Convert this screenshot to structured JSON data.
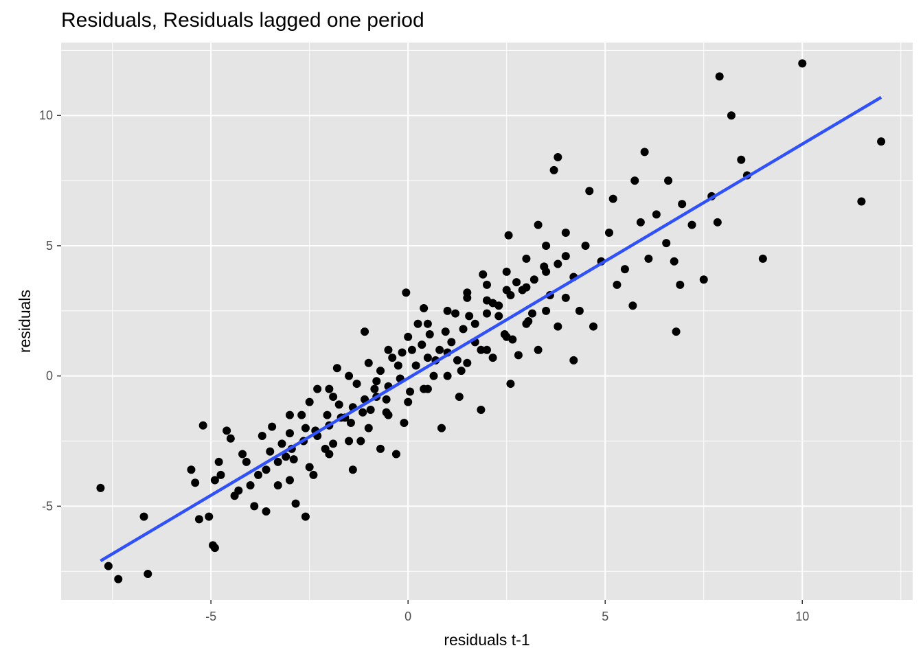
{
  "chart_data": {
    "type": "scatter",
    "title": "Residuals, Residuals lagged one period",
    "xlabel": "residuals t-1",
    "ylabel": "residuals",
    "xlim": [
      -8.8,
      12.8
    ],
    "ylim": [
      -8.6,
      12.8
    ],
    "x_ticks": [
      -5,
      0,
      5,
      10
    ],
    "x_tick_labels": [
      "-5",
      "0",
      "5",
      "10"
    ],
    "y_ticks": [
      -5,
      0,
      5,
      10
    ],
    "y_tick_labels": [
      "-5",
      "0",
      "5",
      "10"
    ],
    "grid": true,
    "colors": {
      "panel_background": "#e5e5e5",
      "grid": "#ffffff",
      "points": "#000000",
      "fit_line": "#3050f8"
    },
    "series": [
      {
        "type": "scatter",
        "points": [
          [
            -7.8,
            -4.3
          ],
          [
            -7.6,
            -7.3
          ],
          [
            -7.35,
            -7.8
          ],
          [
            -6.7,
            -5.4
          ],
          [
            -6.6,
            -7.6
          ],
          [
            -5.5,
            -3.6
          ],
          [
            -5.4,
            -4.1
          ],
          [
            -5.3,
            -5.5
          ],
          [
            -5.2,
            -1.9
          ],
          [
            -5.05,
            -5.4
          ],
          [
            -4.9,
            -4.0
          ],
          [
            -4.75,
            -3.8
          ],
          [
            -4.6,
            -2.1
          ],
          [
            -4.95,
            -6.5
          ],
          [
            -4.9,
            -6.6
          ],
          [
            -4.8,
            -3.3
          ],
          [
            -4.5,
            -2.4
          ],
          [
            -4.3,
            -4.4
          ],
          [
            -4.1,
            -3.3
          ],
          [
            -3.9,
            -5.0
          ],
          [
            -3.7,
            -2.3
          ],
          [
            -3.45,
            -1.95
          ],
          [
            -3.3,
            -4.2
          ],
          [
            -3.6,
            -5.2
          ],
          [
            -3.1,
            -3.1
          ],
          [
            -3.0,
            -2.2
          ],
          [
            -2.85,
            -4.9
          ],
          [
            -2.7,
            -1.5
          ],
          [
            -2.6,
            -5.4
          ],
          [
            -2.4,
            -3.8
          ],
          [
            -2.3,
            -0.5
          ],
          [
            -2.1,
            -2.8
          ],
          [
            -1.9,
            -0.8
          ],
          [
            -1.8,
            0.3
          ],
          [
            -1.6,
            -1.6
          ],
          [
            -1.4,
            -3.6
          ],
          [
            -1.2,
            -2.5
          ],
          [
            -1.1,
            1.7
          ],
          [
            -0.95,
            -1.3
          ],
          [
            -0.8,
            -0.2
          ],
          [
            -0.7,
            -2.8
          ],
          [
            -0.55,
            -1.4
          ],
          [
            -0.4,
            0.7
          ],
          [
            -0.3,
            -3.0
          ],
          [
            -0.15,
            0.9
          ],
          [
            -0.05,
            3.2
          ],
          [
            0.1,
            1.0
          ],
          [
            0.25,
            2.0
          ],
          [
            0.4,
            -0.5
          ],
          [
            0.55,
            1.6
          ],
          [
            0.7,
            0.6
          ],
          [
            0.85,
            -2.0
          ],
          [
            1.0,
            0.9
          ],
          [
            1.2,
            2.4
          ],
          [
            1.35,
            0.2
          ],
          [
            1.5,
            3.2
          ],
          [
            1.7,
            1.3
          ],
          [
            1.85,
            -1.3
          ],
          [
            2.0,
            2.9
          ],
          [
            2.15,
            0.7
          ],
          [
            2.3,
            2.3
          ],
          [
            2.5,
            3.3
          ],
          [
            2.65,
            1.4
          ],
          [
            2.8,
            0.8
          ],
          [
            3.0,
            3.4
          ],
          [
            3.15,
            2.4
          ],
          [
            3.3,
            1.0
          ],
          [
            3.45,
            4.2
          ],
          [
            3.6,
            3.1
          ],
          [
            3.8,
            1.9
          ],
          [
            4.0,
            4.6
          ],
          [
            4.2,
            3.8
          ],
          [
            4.35,
            2.5
          ],
          [
            4.5,
            5.0
          ],
          [
            4.7,
            1.9
          ],
          [
            4.9,
            4.4
          ],
          [
            5.1,
            5.5
          ],
          [
            5.3,
            3.5
          ],
          [
            5.5,
            4.1
          ],
          [
            5.7,
            2.7
          ],
          [
            5.9,
            5.9
          ],
          [
            6.1,
            4.5
          ],
          [
            6.3,
            6.2
          ],
          [
            6.55,
            5.1
          ],
          [
            6.75,
            4.4
          ],
          [
            6.95,
            6.6
          ],
          [
            7.2,
            5.8
          ],
          [
            7.5,
            3.7
          ],
          [
            7.7,
            6.9
          ],
          [
            7.85,
            5.9
          ],
          [
            7.9,
            11.5
          ],
          [
            8.2,
            10.0
          ],
          [
            8.45,
            8.3
          ],
          [
            8.6,
            7.7
          ],
          [
            9.0,
            4.5
          ],
          [
            10.0,
            12.0
          ],
          [
            11.5,
            6.7
          ],
          [
            12.0,
            9.0
          ],
          [
            -4.2,
            -3.0
          ],
          [
            -3.8,
            -3.8
          ],
          [
            -3.5,
            -2.9
          ],
          [
            -3.2,
            -2.6
          ],
          [
            -2.9,
            -3.2
          ],
          [
            -2.6,
            -2.0
          ],
          [
            -2.3,
            -2.3
          ],
          [
            -2.0,
            -1.9
          ],
          [
            -1.7,
            -1.6
          ],
          [
            -1.4,
            -1.2
          ],
          [
            -1.1,
            -0.9
          ],
          [
            -0.8,
            -0.8
          ],
          [
            -0.5,
            -0.4
          ],
          [
            -0.2,
            -0.1
          ],
          [
            0.2,
            0.4
          ],
          [
            0.5,
            0.7
          ],
          [
            0.8,
            1.0
          ],
          [
            1.1,
            1.3
          ],
          [
            1.4,
            1.8
          ],
          [
            1.7,
            2.0
          ],
          [
            2.0,
            2.4
          ],
          [
            2.3,
            2.7
          ],
          [
            2.6,
            3.1
          ],
          [
            2.9,
            3.3
          ],
          [
            3.2,
            3.7
          ],
          [
            3.5,
            4.0
          ],
          [
            3.8,
            4.3
          ],
          [
            -4.4,
            -4.6
          ],
          [
            -4.0,
            -4.2
          ],
          [
            -3.6,
            -3.6
          ],
          [
            -3.3,
            -3.3
          ],
          [
            -2.95,
            -2.8
          ],
          [
            -2.65,
            -2.5
          ],
          [
            -2.35,
            -2.1
          ],
          [
            -2.05,
            -1.5
          ],
          [
            -1.75,
            -1.1
          ],
          [
            -1.45,
            -1.8
          ],
          [
            -1.15,
            -1.4
          ],
          [
            -0.85,
            -0.5
          ],
          [
            -0.55,
            -0.9
          ],
          [
            -0.25,
            0.4
          ],
          [
            0.05,
            -0.6
          ],
          [
            0.35,
            1.2
          ],
          [
            0.65,
            0.0
          ],
          [
            0.95,
            1.7
          ],
          [
            1.25,
            0.6
          ],
          [
            1.55,
            2.3
          ],
          [
            1.85,
            1.0
          ],
          [
            2.15,
            2.8
          ],
          [
            2.45,
            1.6
          ],
          [
            2.75,
            3.6
          ],
          [
            3.05,
            2.1
          ],
          [
            -3.0,
            -4.0
          ],
          [
            -2.5,
            -3.5
          ],
          [
            -2.0,
            -3.0
          ],
          [
            -1.5,
            -2.5
          ],
          [
            -1.0,
            -2.0
          ],
          [
            -0.5,
            -1.5
          ],
          [
            0.0,
            -1.0
          ],
          [
            0.5,
            -0.5
          ],
          [
            1.0,
            0.0
          ],
          [
            1.5,
            0.5
          ],
          [
            2.0,
            1.0
          ],
          [
            2.5,
            1.5
          ],
          [
            3.0,
            2.0
          ],
          [
            3.5,
            2.5
          ],
          [
            4.0,
            3.0
          ],
          [
            -3.0,
            -1.5
          ],
          [
            -2.5,
            -1.0
          ],
          [
            -2.0,
            -0.5
          ],
          [
            -1.5,
            0.0
          ],
          [
            -1.0,
            0.5
          ],
          [
            -0.5,
            1.0
          ],
          [
            0.0,
            1.5
          ],
          [
            0.5,
            2.0
          ],
          [
            1.0,
            2.5
          ],
          [
            1.5,
            3.0
          ],
          [
            2.0,
            3.5
          ],
          [
            2.5,
            4.0
          ],
          [
            3.0,
            4.5
          ],
          [
            3.5,
            5.0
          ],
          [
            4.0,
            5.5
          ],
          [
            -1.9,
            -2.6
          ],
          [
            -1.3,
            -0.3
          ],
          [
            -0.7,
            0.2
          ],
          [
            -0.1,
            -1.8
          ],
          [
            0.4,
            2.6
          ],
          [
            1.3,
            -0.8
          ],
          [
            1.9,
            3.9
          ],
          [
            2.6,
            -0.3
          ],
          [
            3.3,
            5.8
          ],
          [
            4.2,
            0.6
          ],
          [
            5.2,
            6.8
          ],
          [
            6.0,
            8.6
          ],
          [
            6.6,
            7.5
          ],
          [
            6.8,
            1.7
          ],
          [
            3.7,
            7.9
          ],
          [
            3.8,
            8.4
          ],
          [
            4.6,
            7.1
          ],
          [
            5.75,
            7.5
          ],
          [
            6.9,
            3.5
          ],
          [
            2.55,
            5.4
          ]
        ]
      },
      {
        "type": "line",
        "points": [
          [
            -7.8,
            -7.1
          ],
          [
            12.0,
            10.7
          ]
        ]
      }
    ]
  }
}
